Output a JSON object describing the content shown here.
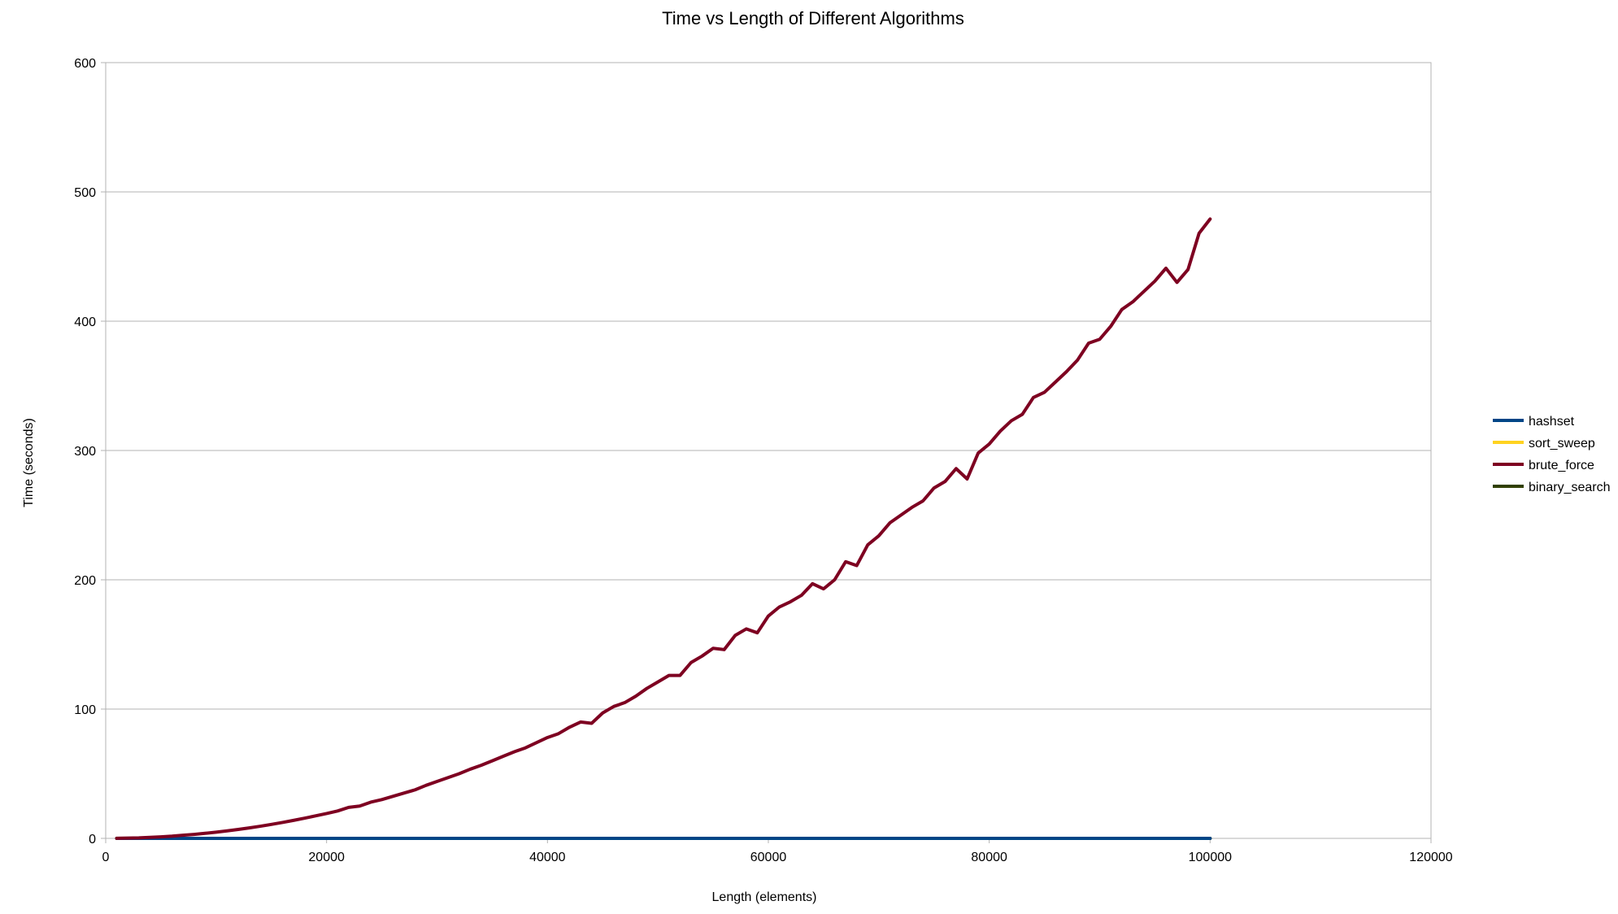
{
  "chart_data": {
    "type": "line",
    "title": "Time vs Length of Different Algorithms",
    "xlabel": "Length (elements)",
    "ylabel": "Time (seconds)",
    "xlim": [
      0,
      120000
    ],
    "ylim": [
      0,
      600
    ],
    "x_ticks": [
      "0",
      "20000",
      "40000",
      "60000",
      "80000",
      "100000",
      "120000"
    ],
    "y_ticks": [
      "0",
      "100",
      "200",
      "300",
      "400",
      "500",
      "600"
    ],
    "grid": "horizontal",
    "legend_position": "right",
    "x": [
      1000,
      2000,
      3000,
      4000,
      5000,
      6000,
      7000,
      8000,
      9000,
      10000,
      11000,
      12000,
      13000,
      14000,
      15000,
      16000,
      17000,
      18000,
      19000,
      20000,
      21000,
      22000,
      23000,
      24000,
      25000,
      26000,
      27000,
      28000,
      29000,
      30000,
      31000,
      32000,
      33000,
      34000,
      35000,
      36000,
      37000,
      38000,
      39000,
      40000,
      41000,
      42000,
      43000,
      44000,
      45000,
      46000,
      47000,
      48000,
      49000,
      50000,
      51000,
      52000,
      53000,
      54000,
      55000,
      56000,
      57000,
      58000,
      59000,
      60000,
      61000,
      62000,
      63000,
      64000,
      65000,
      66000,
      67000,
      68000,
      69000,
      70000,
      71000,
      72000,
      73000,
      74000,
      75000,
      76000,
      77000,
      78000,
      79000,
      80000,
      81000,
      82000,
      83000,
      84000,
      85000,
      86000,
      87000,
      88000,
      89000,
      90000,
      91000,
      92000,
      93000,
      94000,
      95000,
      96000,
      97000,
      98000,
      99000,
      100000
    ],
    "series": [
      {
        "name": "hashset",
        "color": "#004586",
        "values": [
          0,
          0,
          0,
          0,
          0,
          0,
          0,
          0,
          0,
          0,
          0,
          0,
          0,
          0,
          0,
          0,
          0,
          0,
          0,
          0,
          0,
          0,
          0,
          0,
          0,
          0,
          0,
          0,
          0,
          0,
          0,
          0,
          0,
          0,
          0,
          0,
          0,
          0,
          0,
          0,
          0,
          0,
          0,
          0,
          0,
          0,
          0,
          0,
          0,
          0,
          0,
          0,
          0,
          0,
          0,
          0,
          0,
          0,
          0,
          0,
          0,
          0,
          0,
          0,
          0,
          0,
          0,
          0,
          0,
          0,
          0,
          0,
          0,
          0,
          0,
          0,
          0,
          0,
          0,
          0,
          0,
          0,
          0,
          0,
          0,
          0,
          0,
          0,
          0,
          0,
          0,
          0,
          0,
          0,
          0,
          0,
          0,
          0,
          0,
          0
        ]
      },
      {
        "name": "sort_sweep",
        "color": "#ffd320",
        "values": [
          0,
          0,
          0,
          0,
          0,
          0,
          0,
          0,
          0,
          0,
          0,
          0,
          0,
          0,
          0,
          0,
          0,
          0,
          0,
          0,
          0,
          0,
          0,
          0,
          0,
          0,
          0,
          0,
          0,
          0,
          0,
          0,
          0,
          0,
          0,
          0,
          0,
          0,
          0,
          0,
          0,
          0,
          0,
          0,
          0,
          0,
          0,
          0,
          0,
          0,
          0,
          0,
          0,
          0,
          0,
          0,
          0,
          0,
          0,
          0,
          0,
          0,
          0,
          0,
          0,
          0,
          0,
          0,
          0,
          0,
          0,
          0,
          0,
          0,
          0,
          0,
          0,
          0,
          0,
          0,
          0,
          0,
          0,
          0,
          0,
          0,
          0,
          0,
          0,
          0,
          0,
          0,
          0,
          0,
          0,
          0,
          0,
          0,
          0,
          0
        ]
      },
      {
        "name": "brute_force",
        "color": "#7e0021",
        "values": [
          0.05,
          0.2,
          0.4,
          0.8,
          1.2,
          1.7,
          2.4,
          3.1,
          3.9,
          4.8,
          5.8,
          6.9,
          8.1,
          9.4,
          10.8,
          12.3,
          13.9,
          15.6,
          17.4,
          19.2,
          21.2,
          24,
          25,
          28,
          30,
          32.5,
          35,
          37.5,
          41,
          44,
          47,
          50,
          53.5,
          56.5,
          60,
          63.5,
          67,
          70,
          74,
          78,
          81,
          86,
          90,
          89,
          97,
          102,
          105,
          110,
          116,
          121,
          126,
          126,
          136,
          141,
          147,
          146,
          157,
          162,
          159,
          172,
          179,
          183,
          188,
          197,
          193,
          200,
          214,
          211,
          227,
          234,
          244,
          250,
          256,
          261,
          271,
          276,
          286,
          278,
          298,
          305,
          315,
          323,
          328,
          341,
          345,
          353,
          361,
          370,
          383,
          386,
          396,
          409,
          415,
          423,
          431,
          441,
          430,
          440,
          468,
          479
        ]
      },
      {
        "name": "binary_search",
        "color": "#314004",
        "values": [
          0,
          0,
          0,
          0,
          0,
          0,
          0,
          0,
          0,
          0,
          0,
          0,
          0,
          0,
          0,
          0,
          0,
          0,
          0,
          0,
          0,
          0,
          0,
          0,
          0,
          0,
          0,
          0,
          0,
          0,
          0,
          0,
          0,
          0,
          0,
          0,
          0,
          0,
          0,
          0,
          0,
          0,
          0,
          0,
          0,
          0,
          0,
          0,
          0,
          0,
          0,
          0,
          0,
          0,
          0,
          0,
          0,
          0,
          0,
          0,
          0,
          0,
          0,
          0,
          0,
          0,
          0,
          0,
          0,
          0,
          0,
          0,
          0,
          0,
          0,
          0,
          0,
          0,
          0,
          0,
          0,
          0,
          0,
          0,
          0,
          0,
          0,
          0,
          0,
          0,
          0,
          0,
          0,
          0,
          0,
          0,
          0,
          0,
          0,
          0
        ]
      }
    ]
  }
}
